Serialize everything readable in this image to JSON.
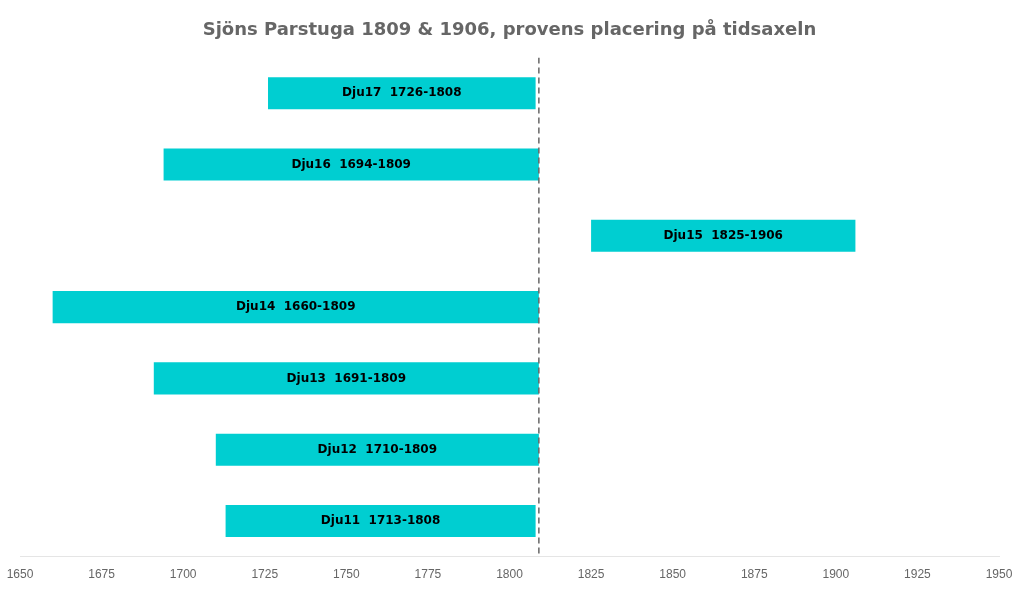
{
  "chart_data": {
    "type": "bar",
    "orientation": "horizontal",
    "title": "Sjöns Parstuga 1809 & 1906, provens placering på tidsaxeln",
    "categories": [
      null,
      null,
      null,
      null,
      null,
      null,
      null
    ],
    "values": [
      [
        1726,
        1808
      ],
      [
        1694,
        1809
      ],
      [
        1825,
        1906
      ],
      [
        1660,
        1809
      ],
      [
        1691,
        1809
      ],
      [
        1710,
        1809
      ],
      [
        1713,
        1808
      ]
    ],
    "value_labels": [
      "Dju17  1726-1808",
      "Dju16  1694-1809",
      "Dju15  1825-1906",
      "Dju14  1660-1809",
      "Dju13  1691-1809",
      "Dju12  1710-1809",
      "Dju11  1713-1808"
    ],
    "data_labels": true,
    "color": "#00CED1",
    "xlim": [
      1650,
      1950
    ],
    "xticks": [
      1650,
      1675,
      1700,
      1725,
      1750,
      1775,
      1800,
      1825,
      1850,
      1875,
      1900,
      1925,
      1950
    ],
    "vlines": [
      {
        "x": 1809,
        "color": "#666666",
        "line_style": "dashed"
      }
    ],
    "grid": false,
    "tick_labels": "x"
  }
}
